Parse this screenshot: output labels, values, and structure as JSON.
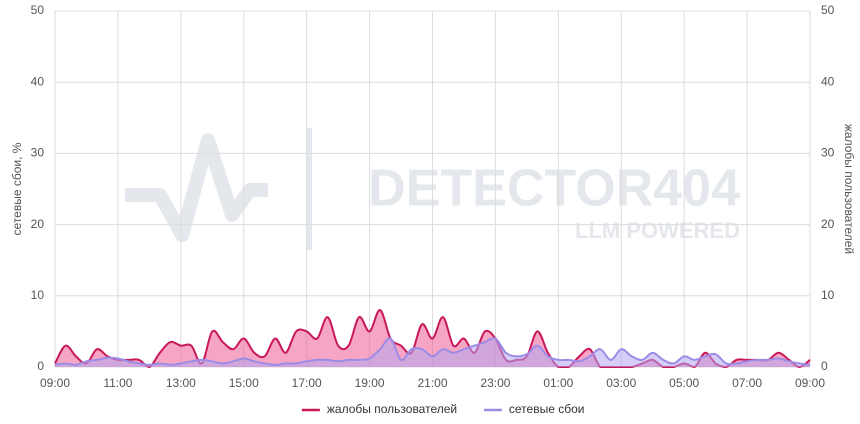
{
  "chart_data": {
    "type": "area",
    "ylabel": "сетевые сбои, %",
    "y2label": "жалобы пользователей",
    "watermark": {
      "title": "DETECTOR404",
      "subtitle": "LLM POWERED"
    },
    "x": [
      0,
      20,
      40,
      60,
      80,
      100,
      120,
      140,
      160,
      180,
      200,
      220,
      240,
      260,
      280,
      300,
      320,
      340,
      360,
      380,
      400,
      420,
      440,
      460,
      480,
      500,
      520,
      540,
      560,
      580,
      600,
      620,
      640,
      660,
      680,
      700,
      720,
      740,
      760,
      780,
      800,
      820,
      840,
      860,
      880,
      900,
      920,
      940,
      960,
      980,
      1000,
      1020,
      1040,
      1060,
      1080,
      1100,
      1120,
      1140,
      1160,
      1180,
      1200,
      1220,
      1240,
      1260,
      1280,
      1300,
      1320,
      1340,
      1360,
      1380,
      1400,
      1420,
      1440
    ],
    "xlim": [
      0,
      1440
    ],
    "xticks": [
      {
        "value": 0,
        "label": "09:00"
      },
      {
        "value": 120,
        "label": "11:00"
      },
      {
        "value": 240,
        "label": "13:00"
      },
      {
        "value": 360,
        "label": "15:00"
      },
      {
        "value": 480,
        "label": "17:00"
      },
      {
        "value": 600,
        "label": "19:00"
      },
      {
        "value": 720,
        "label": "21:00"
      },
      {
        "value": 840,
        "label": "23:00"
      },
      {
        "value": 960,
        "label": "01:00"
      },
      {
        "value": 1080,
        "label": "03:00"
      },
      {
        "value": 1200,
        "label": "05:00"
      },
      {
        "value": 1320,
        "label": "07:00"
      },
      {
        "value": 1440,
        "label": "09:00"
      }
    ],
    "ylim": [
      0,
      50
    ],
    "yticks": [
      0,
      10,
      20,
      30,
      40,
      50
    ],
    "y2lim": [
      0,
      50
    ],
    "y2ticks": [
      0,
      10,
      20,
      30,
      40,
      50
    ],
    "grid": true,
    "legend": "bottom",
    "series": [
      {
        "name": "жалобы пользователей",
        "color": "#c8185a",
        "fill": "#ef5d93",
        "axis": "y2",
        "values": [
          0.5,
          3,
          1.5,
          0.5,
          2.5,
          1.5,
          1,
          1,
          1,
          0,
          2,
          3.5,
          3,
          3,
          0.5,
          5,
          3.5,
          2.5,
          4,
          2,
          1.5,
          4,
          2,
          5,
          5,
          4,
          7,
          3,
          3,
          7,
          5,
          8,
          4,
          3,
          2,
          6,
          4,
          7,
          3,
          4,
          2,
          5,
          4,
          1,
          1,
          1.5,
          5,
          2,
          0,
          0,
          1.5,
          2.5,
          0,
          0,
          0,
          0,
          0.5,
          1,
          0,
          0,
          0.5,
          0,
          2,
          0.5,
          0,
          1,
          1,
          1,
          1,
          2,
          1,
          0,
          1
        ]
      },
      {
        "name": "сетевые сбои",
        "color": "#9c8ce6",
        "fill": "#b3a6f2",
        "values": [
          0.3,
          0.5,
          0.3,
          0.8,
          1.0,
          1.3,
          1.2,
          0.8,
          0.5,
          0.3,
          0.5,
          0.3,
          0.5,
          0.8,
          1.0,
          0.8,
          0.5,
          0.8,
          1.2,
          0.8,
          0.5,
          0.3,
          0.5,
          0.5,
          0.8,
          1.0,
          1.0,
          0.8,
          1.0,
          1.0,
          1.2,
          2.5,
          4.0,
          1.0,
          2.5,
          2.5,
          1.5,
          2.5,
          2.0,
          2.5,
          3.0,
          3.5,
          4.0,
          2.0,
          1.5,
          1.8,
          3.0,
          1.5,
          1.0,
          1.0,
          0.8,
          1.5,
          2.5,
          1.0,
          2.5,
          1.5,
          1.0,
          2.0,
          1.0,
          0.5,
          1.5,
          1.0,
          1.5,
          1.8,
          0.5,
          0.5,
          0.8,
          1.0,
          1.0,
          1.2,
          0.8,
          0.5,
          0.3
        ]
      }
    ]
  }
}
